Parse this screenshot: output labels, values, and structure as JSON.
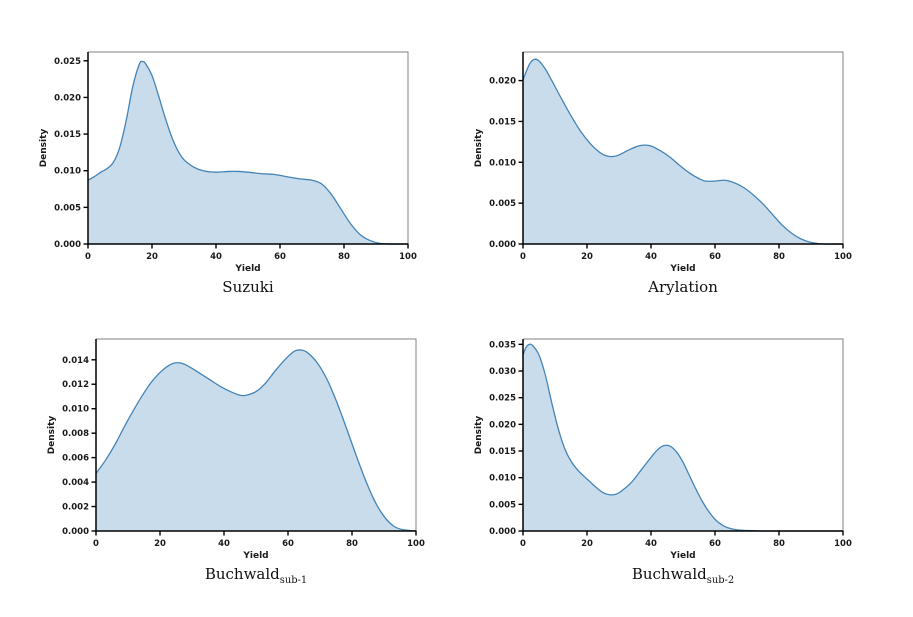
{
  "figure": {
    "description": "2x2 grid of kernel density estimate plots of reaction yields",
    "rows": 2,
    "cols": 2
  },
  "colors": {
    "curve_line": "#4484b7",
    "curve_fill": "#c9dcec",
    "spine_dark": "#000000",
    "spine_light": "#808080",
    "text": "#1a1a1a",
    "background": "#ffffff"
  },
  "chart_data": [
    {
      "type": "area",
      "title": "Suzuki",
      "title_sub": "",
      "xlabel": "Yield",
      "ylabel": "Density",
      "xlim": [
        0,
        100
      ],
      "ylim": [
        0,
        0.0262
      ],
      "xticks": [
        0,
        20,
        40,
        60,
        80,
        100
      ],
      "yticks": [
        0,
        0.005,
        0.01,
        0.015,
        0.02,
        0.025
      ],
      "grid": false,
      "legend": false,
      "points": [
        [
          0,
          0.0087
        ],
        [
          2,
          0.0092
        ],
        [
          4,
          0.0098
        ],
        [
          6,
          0.0103
        ],
        [
          8,
          0.0112
        ],
        [
          10,
          0.0133
        ],
        [
          12,
          0.017
        ],
        [
          14,
          0.0215
        ],
        [
          16,
          0.0245
        ],
        [
          17,
          0.0249
        ],
        [
          18,
          0.0246
        ],
        [
          20,
          0.023
        ],
        [
          22,
          0.0203
        ],
        [
          24,
          0.0174
        ],
        [
          26,
          0.0148
        ],
        [
          28,
          0.0128
        ],
        [
          30,
          0.0115
        ],
        [
          33,
          0.0105
        ],
        [
          36,
          0.01
        ],
        [
          40,
          0.0098
        ],
        [
          44,
          0.0099
        ],
        [
          47,
          0.0099
        ],
        [
          50,
          0.0098
        ],
        [
          54,
          0.0096
        ],
        [
          58,
          0.0095
        ],
        [
          62,
          0.0092
        ],
        [
          66,
          0.0089
        ],
        [
          70,
          0.0087
        ],
        [
          73,
          0.0082
        ],
        [
          76,
          0.0068
        ],
        [
          79,
          0.0048
        ],
        [
          82,
          0.0028
        ],
        [
          85,
          0.0013
        ],
        [
          88,
          0.0005
        ],
        [
          91,
          0.0001
        ],
        [
          95,
          0.0
        ],
        [
          100,
          0.0
        ]
      ]
    },
    {
      "type": "area",
      "title": "Arylation",
      "title_sub": "",
      "xlabel": "Yield",
      "ylabel": "Density",
      "xlim": [
        0,
        100
      ],
      "ylim": [
        0,
        0.0235
      ],
      "xticks": [
        0,
        20,
        40,
        60,
        80,
        100
      ],
      "yticks": [
        0,
        0.005,
        0.01,
        0.015,
        0.02
      ],
      "grid": false,
      "legend": false,
      "points": [
        [
          0,
          0.0201
        ],
        [
          2,
          0.022
        ],
        [
          3.5,
          0.0226
        ],
        [
          5,
          0.0224
        ],
        [
          7,
          0.0214
        ],
        [
          9,
          0.02
        ],
        [
          12,
          0.0178
        ],
        [
          15,
          0.0157
        ],
        [
          18,
          0.0138
        ],
        [
          21,
          0.0123
        ],
        [
          24,
          0.0112
        ],
        [
          26,
          0.0108
        ],
        [
          28,
          0.0107
        ],
        [
          30,
          0.0109
        ],
        [
          33,
          0.0115
        ],
        [
          36,
          0.012
        ],
        [
          38,
          0.0121
        ],
        [
          40,
          0.012
        ],
        [
          43,
          0.0114
        ],
        [
          46,
          0.0106
        ],
        [
          49,
          0.0096
        ],
        [
          52,
          0.0087
        ],
        [
          55,
          0.008
        ],
        [
          57,
          0.0077
        ],
        [
          60,
          0.0077
        ],
        [
          63,
          0.0078
        ],
        [
          66,
          0.0075
        ],
        [
          69,
          0.0069
        ],
        [
          72,
          0.006
        ],
        [
          75,
          0.0049
        ],
        [
          78,
          0.0036
        ],
        [
          81,
          0.0023
        ],
        [
          84,
          0.0013
        ],
        [
          87,
          0.0006
        ],
        [
          90,
          0.0002
        ],
        [
          94,
          0.0
        ],
        [
          100,
          0.0
        ]
      ]
    },
    {
      "type": "area",
      "title": "Buchwald",
      "title_sub": "sub-1",
      "xlabel": "Yield",
      "ylabel": "Density",
      "xlim": [
        0,
        100
      ],
      "ylim": [
        0,
        0.0157
      ],
      "xticks": [
        0,
        20,
        40,
        60,
        80,
        100
      ],
      "yticks": [
        0,
        0.002,
        0.004,
        0.006,
        0.008,
        0.01,
        0.012,
        0.014
      ],
      "grid": false,
      "legend": false,
      "points": [
        [
          0,
          0.0047
        ],
        [
          3,
          0.0058
        ],
        [
          6,
          0.0071
        ],
        [
          9,
          0.0086
        ],
        [
          12,
          0.01
        ],
        [
          15,
          0.0113
        ],
        [
          18,
          0.0124
        ],
        [
          21,
          0.0132
        ],
        [
          24,
          0.0137
        ],
        [
          27,
          0.0137
        ],
        [
          30,
          0.0133
        ],
        [
          33,
          0.0128
        ],
        [
          36,
          0.0123
        ],
        [
          39,
          0.0118
        ],
        [
          42,
          0.0114
        ],
        [
          45,
          0.0111
        ],
        [
          47,
          0.0111
        ],
        [
          50,
          0.0114
        ],
        [
          53,
          0.0121
        ],
        [
          56,
          0.0131
        ],
        [
          59,
          0.014
        ],
        [
          62,
          0.0147
        ],
        [
          64,
          0.0148
        ],
        [
          66,
          0.0146
        ],
        [
          69,
          0.0138
        ],
        [
          72,
          0.0125
        ],
        [
          75,
          0.0107
        ],
        [
          78,
          0.0086
        ],
        [
          81,
          0.0064
        ],
        [
          84,
          0.0043
        ],
        [
          87,
          0.0025
        ],
        [
          90,
          0.0012
        ],
        [
          93,
          0.0004
        ],
        [
          96,
          0.0001
        ],
        [
          100,
          0.0
        ]
      ]
    },
    {
      "type": "area",
      "title": "Buchwald",
      "title_sub": "sub-2",
      "xlabel": "Yield",
      "ylabel": "Density",
      "xlim": [
        0,
        100
      ],
      "ylim": [
        0,
        0.036
      ],
      "xticks": [
        0,
        20,
        40,
        60,
        80,
        100
      ],
      "yticks": [
        0,
        0.005,
        0.01,
        0.015,
        0.02,
        0.025,
        0.03,
        0.035
      ],
      "grid": false,
      "legend": false,
      "points": [
        [
          0,
          0.033
        ],
        [
          1,
          0.0345
        ],
        [
          2,
          0.035
        ],
        [
          3,
          0.0348
        ],
        [
          5,
          0.033
        ],
        [
          7,
          0.0292
        ],
        [
          9,
          0.024
        ],
        [
          11,
          0.0192
        ],
        [
          13,
          0.0155
        ],
        [
          15,
          0.0131
        ],
        [
          17,
          0.0115
        ],
        [
          19,
          0.0103
        ],
        [
          21,
          0.0092
        ],
        [
          23,
          0.0081
        ],
        [
          25,
          0.0072
        ],
        [
          27,
          0.0068
        ],
        [
          29,
          0.0069
        ],
        [
          31,
          0.0076
        ],
        [
          34,
          0.0092
        ],
        [
          37,
          0.0115
        ],
        [
          40,
          0.0138
        ],
        [
          42,
          0.0152
        ],
        [
          44,
          0.016
        ],
        [
          46,
          0.0159
        ],
        [
          48,
          0.0148
        ],
        [
          50,
          0.0129
        ],
        [
          52,
          0.0104
        ],
        [
          54,
          0.0079
        ],
        [
          56,
          0.0056
        ],
        [
          58,
          0.0037
        ],
        [
          60,
          0.0022
        ],
        [
          62,
          0.0012
        ],
        [
          64,
          0.0006
        ],
        [
          67,
          0.0002
        ],
        [
          70,
          0.0001
        ],
        [
          75,
          0.0
        ],
        [
          80,
          0.0
        ],
        [
          90,
          0.0
        ],
        [
          100,
          0.0
        ]
      ]
    }
  ]
}
